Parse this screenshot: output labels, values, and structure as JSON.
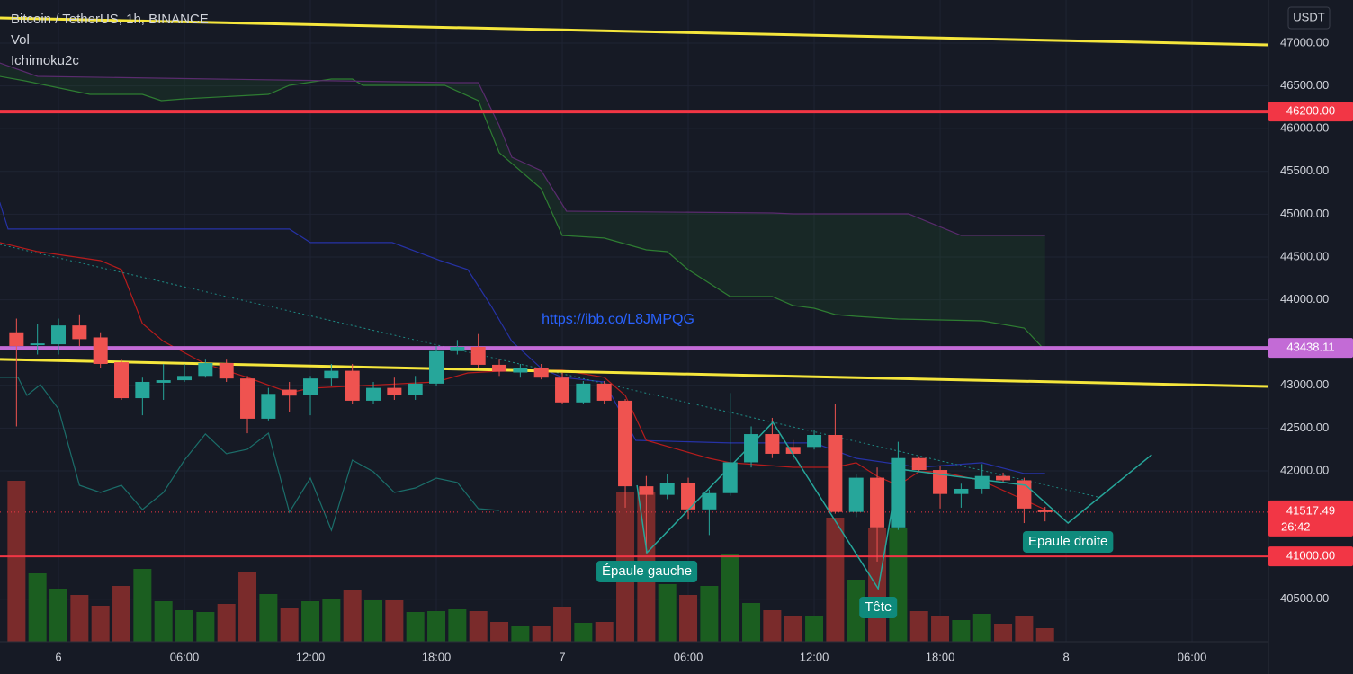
{
  "chart_data": {
    "type": "candlestick",
    "title": "Bitcoin / TetherUS, 1h, BINANCE",
    "indicators": [
      "Vol",
      "Ichimoku2c"
    ],
    "currency": "USDT",
    "link": "https://ibb.co/L8JMPQG",
    "up_color": "#26a69a",
    "down_color": "#ef5350",
    "volume_up_color": "#1b5e20",
    "volume_down_color": "#7a2b2b",
    "x": [
      -2,
      -1,
      0,
      1,
      2,
      3,
      4,
      5,
      6,
      7,
      8,
      9,
      10,
      11,
      12,
      13,
      14,
      15,
      16,
      17,
      18,
      19,
      20,
      21,
      22,
      23,
      24,
      25,
      26,
      27,
      28,
      29,
      30,
      31,
      32,
      33,
      34,
      35,
      36,
      37,
      38,
      39,
      40,
      41,
      42,
      43,
      44,
      45,
      46,
      47
    ],
    "open": [
      43620,
      43470,
      43480,
      43700,
      43560,
      43270,
      42850,
      43030,
      43060,
      43110,
      43260,
      43080,
      42610,
      42950,
      42890,
      43080,
      43170,
      42820,
      42970,
      42890,
      43020,
      43400,
      43450,
      43240,
      43150,
      43200,
      43090,
      42800,
      43020,
      42820,
      41820,
      41720,
      41860,
      41550,
      41740,
      42100,
      42430,
      42280,
      42280,
      42420,
      41520,
      41920,
      41340,
      42150,
      42010,
      41730,
      41790,
      41940,
      41890,
      41540
    ],
    "high": [
      43780,
      43720,
      43780,
      43830,
      43620,
      43300,
      43090,
      43250,
      43250,
      43300,
      43300,
      43110,
      42970,
      43040,
      43110,
      43250,
      43250,
      43040,
      43090,
      43110,
      43460,
      43530,
      43600,
      43300,
      43250,
      43250,
      43150,
      43050,
      43050,
      42840,
      41940,
      41960,
      41920,
      41780,
      42910,
      42520,
      42620,
      42360,
      42480,
      42780,
      41960,
      42040,
      42340,
      42170,
      42060,
      41850,
      42080,
      41980,
      41920,
      41580
    ],
    "low": [
      42520,
      43360,
      43360,
      43460,
      43200,
      42830,
      42650,
      42830,
      43040,
      43090,
      43040,
      42440,
      42590,
      42690,
      42650,
      42990,
      42780,
      42780,
      42830,
      42830,
      42990,
      43360,
      43200,
      43110,
      43090,
      43070,
      42780,
      42780,
      42780,
      41570,
      41040,
      41670,
      41430,
      41250,
      41710,
      42040,
      42150,
      42130,
      42250,
      41500,
      41460,
      40940,
      41310,
      41990,
      41560,
      41570,
      41730,
      41860,
      41390,
      41410
    ],
    "close": [
      43460,
      43490,
      43700,
      43540,
      43250,
      42850,
      43040,
      43060,
      43110,
      43260,
      43080,
      42610,
      42900,
      42880,
      43080,
      43170,
      42820,
      42970,
      42890,
      43020,
      43400,
      43450,
      43240,
      43160,
      43200,
      43090,
      42800,
      43020,
      42820,
      41820,
      41720,
      41860,
      41550,
      41740,
      42100,
      42430,
      42200,
      42200,
      42420,
      41520,
      41920,
      41340,
      42150,
      42010,
      41730,
      41790,
      41940,
      41890,
      41560,
      41517.49
    ],
    "volume": [
      179,
      76,
      59,
      52,
      40,
      62,
      81,
      45,
      35,
      33,
      42,
      77,
      53,
      37,
      45,
      48,
      57,
      46,
      46,
      33,
      34,
      36,
      34,
      22,
      17,
      17,
      38,
      21,
      22,
      166,
      166,
      64,
      52,
      62,
      97,
      43,
      35,
      29,
      28,
      138,
      69,
      126,
      126,
      34,
      28,
      24,
      31,
      20,
      28,
      15
    ],
    "xlim": [
      -2.786,
      57.64
    ],
    "ylim": [
      40004,
      47504
    ],
    "xticks": [
      {
        "value": 0,
        "label": "6"
      },
      {
        "value": 6,
        "label": "06:00"
      },
      {
        "value": 12,
        "label": "12:00"
      },
      {
        "value": 18,
        "label": "18:00"
      },
      {
        "value": 24,
        "label": "7"
      },
      {
        "value": 30,
        "label": "06:00"
      },
      {
        "value": 36,
        "label": "12:00"
      },
      {
        "value": 42,
        "label": "18:00"
      },
      {
        "value": 48,
        "label": "8"
      },
      {
        "value": 54,
        "label": "06:00"
      }
    ],
    "yticks": [
      {
        "value": 47000,
        "label": "47000.00"
      },
      {
        "value": 46500,
        "label": "46500.00"
      },
      {
        "value": 46000,
        "label": "46000.00"
      },
      {
        "value": 45500,
        "label": "45500.00"
      },
      {
        "value": 45000,
        "label": "45000.00"
      },
      {
        "value": 44500,
        "label": "44500.00"
      },
      {
        "value": 44000,
        "label": "44000.00"
      },
      {
        "value": 43000,
        "label": "43000.00"
      },
      {
        "value": 42500,
        "label": "42500.00"
      },
      {
        "value": 42000,
        "label": "42000.00"
      },
      {
        "value": 40500,
        "label": "40500.00"
      }
    ],
    "grid": true,
    "hlines": [
      {
        "value": 46200,
        "label": "46200.00",
        "color": "#f23645"
      },
      {
        "value": 43438.11,
        "label": "43438.11",
        "color": "#c36bd6"
      },
      {
        "value": 41000,
        "label": "41000.00",
        "color": "#f23645"
      }
    ],
    "last_price": {
      "value": 41517.49,
      "label": "41517.49",
      "countdown": "26:42",
      "color": "#f23645"
    },
    "trendlines": [
      {
        "x": [
          -2.786,
          57.64
        ],
        "values": [
          47294,
          46979
        ],
        "color": "#f5e63c"
      },
      {
        "x": [
          -2.786,
          57.64
        ],
        "values": [
          43303,
          42987
        ],
        "color": "#f5e63c"
      }
    ],
    "dotted_trend": {
      "x": [
        -2.786,
        49.5
      ],
      "values": [
        44647,
        41695
      ],
      "color": "#1e8c85"
    },
    "ichimoku": {
      "span_a": {
        "color": "#2e7d32",
        "x": [
          -2.8,
          -1.6,
          1.5,
          4,
          4.9,
          6,
          10,
          11,
          13,
          14,
          14.5,
          18.4,
          20,
          21,
          23,
          24,
          26,
          28,
          29,
          30,
          32,
          34,
          35,
          36,
          37,
          38,
          40,
          44,
          46,
          47
        ],
        "values": [
          46611,
          46559,
          46401,
          46401,
          46328,
          46349,
          46401,
          46506,
          46580,
          46580,
          46506,
          46506,
          46328,
          45719,
          45298,
          44752,
          44721,
          44584,
          44563,
          44353,
          44038,
          44038,
          43933,
          43901,
          43828,
          43807,
          43775,
          43754,
          43670,
          43408
        ]
      },
      "span_b": {
        "color": "#5a2b6e",
        "x": [
          -2.8,
          -1,
          18.9,
          20,
          21,
          21.6,
          23,
          24.2,
          34,
          35,
          40.5,
          43,
          47
        ],
        "values": [
          46769,
          46611,
          46538,
          46538,
          46034,
          45666,
          45508,
          45036,
          45015,
          45004,
          45004,
          44752,
          44752
        ]
      },
      "base_line": {
        "color": "#2632a6",
        "x": [
          -2.8,
          -2.4,
          11,
          12,
          15.9,
          18.2,
          19.5,
          20.6,
          21.6,
          23,
          24,
          26,
          27.5,
          32,
          36,
          38,
          41,
          44,
          46,
          47
        ],
        "values": [
          45141,
          44826,
          44826,
          44669,
          44669,
          44458,
          44353,
          43933,
          43513,
          43198,
          43093,
          43040,
          42357,
          42326,
          42326,
          42147,
          42042,
          42095,
          41969,
          41969
        ]
      },
      "conversion_line": {
        "color": "#b71c1c",
        "x": [
          -2.8,
          -1,
          2,
          3,
          4,
          5,
          7,
          9,
          11,
          12,
          18,
          19.5,
          21,
          24,
          26,
          27,
          28,
          31,
          32,
          35,
          37,
          38,
          39,
          40,
          41,
          42,
          44,
          47
        ],
        "values": [
          44669,
          44564,
          44458,
          44353,
          43723,
          43513,
          43250,
          43093,
          42914,
          42966,
          43040,
          43145,
          43166,
          43177,
          43093,
          42882,
          42357,
          42147,
          42095,
          42042,
          42042,
          42095,
          41937,
          41832,
          41990,
          41990,
          41885,
          41548
        ]
      },
      "lagging_span": {
        "color": "#1b6e6a",
        "x": [
          -2.79,
          -1.93,
          -1.5,
          -0.86,
          0,
          1,
          2,
          3,
          4,
          5,
          6,
          7,
          8,
          9,
          10,
          11,
          12,
          13,
          14,
          15,
          16,
          17,
          18,
          19,
          20,
          21
        ],
        "values": [
          43093,
          43093,
          42882,
          43008,
          42725,
          41832,
          41748,
          41832,
          41548,
          41748,
          42126,
          42431,
          42200,
          42252,
          42441,
          41517,
          41916,
          41307,
          42126,
          41990,
          41748,
          41800,
          41916,
          41864,
          41559,
          41538
        ]
      },
      "cloud_color": "rgba(46,125,50,0.14)"
    },
    "pattern": {
      "color": "#26a69a",
      "x": [
        27.56,
        28.03,
        34.03,
        39.05,
        40.03,
        46.08,
        48.09,
        52.08
      ],
      "values": [
        41832,
        41044,
        42567,
        40624,
        42021,
        41832,
        41391,
        42189
      ],
      "labels": [
        null,
        "Épaule gauche",
        null,
        "Tête",
        null,
        null,
        "Epaule droite",
        null
      ]
    }
  }
}
